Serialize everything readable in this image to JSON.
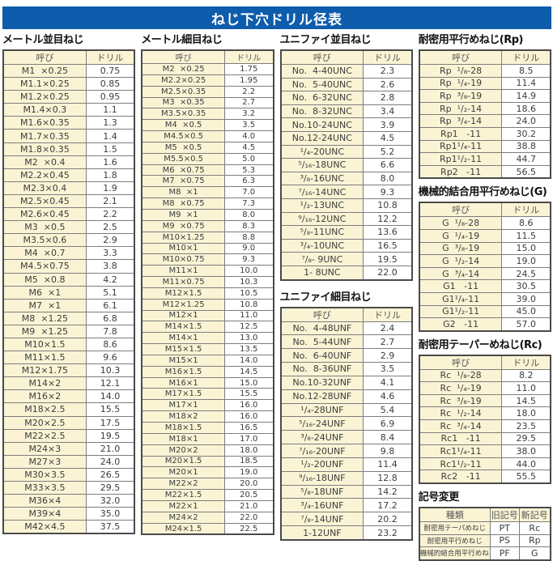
{
  "page": {
    "title": "ねじ下穴ドリル径表"
  },
  "labels": {
    "name_col": "呼び",
    "drill_col": "ドリル"
  },
  "colors": {
    "banner_blue": "#0e5cac",
    "cell_cream": "#faf4d5",
    "border_gray": "#7d7d7d",
    "outer_border": "#4a4a4a"
  },
  "tables": {
    "metric_coarse": {
      "title": "メートル並目ねじ",
      "rows": [
        [
          "M1  ×0.25",
          "0.75"
        ],
        [
          "M1.1×0.25",
          "0.85"
        ],
        [
          "M1.2×0.25",
          "0.95"
        ],
        [
          "M1.4×0.3",
          "1.1"
        ],
        [
          "M1.6×0.35",
          "1.3"
        ],
        [
          "M1.7×0.35",
          "1.4"
        ],
        [
          "M1.8×0.35",
          "1.5"
        ],
        [
          "M2  ×0.4",
          "1.6"
        ],
        [
          "M2.2×0.45",
          "1.8"
        ],
        [
          "M2.3×0.4",
          "1.9"
        ],
        [
          "M2.5×0.45",
          "2.1"
        ],
        [
          "M2.6×0.45",
          "2.2"
        ],
        [
          "M3  ×0.5",
          "2.5"
        ],
        [
          "M3.5×0.6",
          "2.9"
        ],
        [
          "M4  ×0.7",
          "3.3"
        ],
        [
          "M4.5×0.75",
          "3.8"
        ],
        [
          "M5  ×0.8",
          "4.2"
        ],
        [
          "M6  ×1",
          "5.1"
        ],
        [
          "M7  ×1",
          "6.1"
        ],
        [
          "M8  ×1.25",
          "6.8"
        ],
        [
          "M9  ×1.25",
          "7.8"
        ],
        [
          "M10×1.5",
          "8.6"
        ],
        [
          "M11×1.5",
          "9.6"
        ],
        [
          "M12×1.75",
          "10.3"
        ],
        [
          "M14×2",
          "12.1"
        ],
        [
          "M16×2",
          "14.0"
        ],
        [
          "M18×2.5",
          "15.5"
        ],
        [
          "M20×2.5",
          "17.5"
        ],
        [
          "M22×2.5",
          "19.5"
        ],
        [
          "M24×3",
          "21.0"
        ],
        [
          "M27×3",
          "24.0"
        ],
        [
          "M30×3.5",
          "26.5"
        ],
        [
          "M33×3.5",
          "29.5"
        ],
        [
          "M36×4",
          "32.0"
        ],
        [
          "M39×4",
          "35.0"
        ],
        [
          "M42×4.5",
          "37.5"
        ]
      ]
    },
    "metric_fine": {
      "title": "メートル細目ねじ",
      "rows": [
        [
          "M2  ×0.25",
          "1.75"
        ],
        [
          "M2.2×0.25",
          "1.95"
        ],
        [
          "M2.5×0.35",
          "2.2"
        ],
        [
          "M3  ×0.35",
          "2.7"
        ],
        [
          "M3.5×0.35",
          "3.2"
        ],
        [
          "M4  ×0.5",
          "3.5"
        ],
        [
          "M4.5×0.5",
          "4.0"
        ],
        [
          "M5  ×0.5",
          "4.5"
        ],
        [
          "M5.5×0.5",
          "5.0"
        ],
        [
          "M6  ×0.75",
          "5.3"
        ],
        [
          "M7  ×0.75",
          "6.3"
        ],
        [
          "M8  ×1",
          "7.0"
        ],
        [
          "M8  ×0.75",
          "7.3"
        ],
        [
          "M9  ×1",
          "8.0"
        ],
        [
          "M9  ×0.75",
          "8.3"
        ],
        [
          "M10×1.25",
          "8.8"
        ],
        [
          "M10×1",
          "9.0"
        ],
        [
          "M10×0.75",
          "9.3"
        ],
        [
          "M11×1",
          "10.0"
        ],
        [
          "M11×0.75",
          "10.3"
        ],
        [
          "M12×1.5",
          "10.5"
        ],
        [
          "M12×1.25",
          "10.8"
        ],
        [
          "M12×1",
          "11.0"
        ],
        [
          "M14×1.5",
          "12.5"
        ],
        [
          "M14×1",
          "13.0"
        ],
        [
          "M15×1.5",
          "13.5"
        ],
        [
          "M15×1",
          "14.0"
        ],
        [
          "M16×1.5",
          "14.5"
        ],
        [
          "M16×1",
          "15.0"
        ],
        [
          "M17×1.5",
          "15.5"
        ],
        [
          "M17×1",
          "16.0"
        ],
        [
          "M18×2",
          "16.0"
        ],
        [
          "M18×1.5",
          "16.5"
        ],
        [
          "M18×1",
          "17.0"
        ],
        [
          "M20×2",
          "18.0"
        ],
        [
          "M20×1.5",
          "18.5"
        ],
        [
          "M20×1",
          "19.0"
        ],
        [
          "M22×2",
          "20.0"
        ],
        [
          "M22×1.5",
          "20.5"
        ],
        [
          "M22×1",
          "21.0"
        ],
        [
          "M24×2",
          "22.0"
        ],
        [
          "M24×1.5",
          "22.5"
        ]
      ]
    },
    "unified_coarse": {
      "title": "ユニファイ並目ねじ",
      "rows": [
        [
          "No.  4-40UNC",
          "2.3"
        ],
        [
          "No.  5-40UNC",
          "2.6"
        ],
        [
          "No.  6-32UNC",
          "2.8"
        ],
        [
          "No.  8-32UNC",
          "3.4"
        ],
        [
          "No.10-24UNC",
          "3.9"
        ],
        [
          "No.12-24UNC",
          "4.5"
        ],
        [
          "¹/₄-20UNC",
          "5.2"
        ],
        [
          "⁵/₁₆-18UNC",
          "6.6"
        ],
        [
          "³/₈-16UNC",
          "8.0"
        ],
        [
          "⁷/₁₆-14UNC",
          "9.3"
        ],
        [
          "¹/₂-13UNC",
          "10.8"
        ],
        [
          "⁹/₁₆-12UNC",
          "12.2"
        ],
        [
          "⁵/₈-11UNC",
          "13.6"
        ],
        [
          "³/₄-10UNC",
          "16.5"
        ],
        [
          "⁷/₈- 9UNC",
          "19.5"
        ],
        [
          "1- 8UNC",
          "22.0"
        ]
      ]
    },
    "unified_fine": {
      "title": "ユニファイ細目ねじ",
      "rows": [
        [
          "No.  4-48UNF",
          "2.4"
        ],
        [
          "No.  5-44UNF",
          "2.7"
        ],
        [
          "No.  6-40UNF",
          "2.9"
        ],
        [
          "No.  8-36UNF",
          "3.5"
        ],
        [
          "No.10-32UNF",
          "4.1"
        ],
        [
          "No.12-28UNF",
          "4.6"
        ],
        [
          "¹/₄-28UNF",
          "5.4"
        ],
        [
          "⁵/₁₆-24UNF",
          "6.9"
        ],
        [
          "³/₈-24UNF",
          "8.4"
        ],
        [
          "⁷/₁₆-20UNF",
          "9.8"
        ],
        [
          "¹/₂-20UNF",
          "11.4"
        ],
        [
          "⁹/₁₆-18UNF",
          "12.8"
        ],
        [
          "⁵/₈-18UNF",
          "14.2"
        ],
        [
          "³/₄-16UNF",
          "17.2"
        ],
        [
          "⁷/₈-14UNF",
          "20.2"
        ],
        [
          "1-12UNF",
          "23.2"
        ]
      ]
    },
    "rp": {
      "title": "耐密用平行めねじ(Rp)",
      "rows": [
        [
          "Rp  ¹/₈-28",
          "8.5"
        ],
        [
          "Rp  ¹/₄-19",
          "11.4"
        ],
        [
          "Rp  ³/₈-19",
          "14.9"
        ],
        [
          "Rp  ¹/₂-14",
          "18.6"
        ],
        [
          "Rp  ³/₄-14",
          "24.0"
        ],
        [
          "Rp1   -11",
          "30.2"
        ],
        [
          "Rp1¹/₄-11",
          "38.8"
        ],
        [
          "Rp1¹/₂-11",
          "44.7"
        ],
        [
          "Rp2   -11",
          "56.5"
        ]
      ]
    },
    "g": {
      "title": "機械的結合用平行めねじ(G)",
      "rows": [
        [
          "G  ¹/₈-28",
          "8.6"
        ],
        [
          "G  ¹/₄-19",
          "11.5"
        ],
        [
          "G  ³/₈-19",
          "15.0"
        ],
        [
          "G  ¹/₂-14",
          "19.0"
        ],
        [
          "G  ³/₄-14",
          "24.5"
        ],
        [
          "G1   -11",
          "30.5"
        ],
        [
          "G1¹/₄-11",
          "39.0"
        ],
        [
          "G1¹/₂-11",
          "45.0"
        ],
        [
          "G2   -11",
          "57.0"
        ]
      ]
    },
    "rc": {
      "title": "耐密用テーパーめねじ(Rc)",
      "rows": [
        [
          "Rc  ¹/₈-28",
          "8.2"
        ],
        [
          "Rc  ¹/₄-19",
          "11.0"
        ],
        [
          "Rc  ³/₈-19",
          "14.5"
        ],
        [
          "Rc  ¹/₂-14",
          "18.0"
        ],
        [
          "Rc  ³/₄-14",
          "23.5"
        ],
        [
          "Rc1   -11",
          "29.5"
        ],
        [
          "Rc1¹/₄-11",
          "38.0"
        ],
        [
          "Rc1¹/₂-11",
          "44.0"
        ],
        [
          "Rc2   -11",
          "55.5"
        ]
      ]
    },
    "symbol_change": {
      "title": "記号変更",
      "headers": [
        "種類",
        "旧記号",
        "新記号"
      ],
      "rows": [
        [
          "耐密用テーパめねじ",
          "PT",
          "Rc"
        ],
        [
          "耐密用平行めねじ",
          "PS",
          "Rp"
        ],
        [
          "機械的結合用平行めねじ",
          "PF",
          "G"
        ]
      ]
    }
  }
}
